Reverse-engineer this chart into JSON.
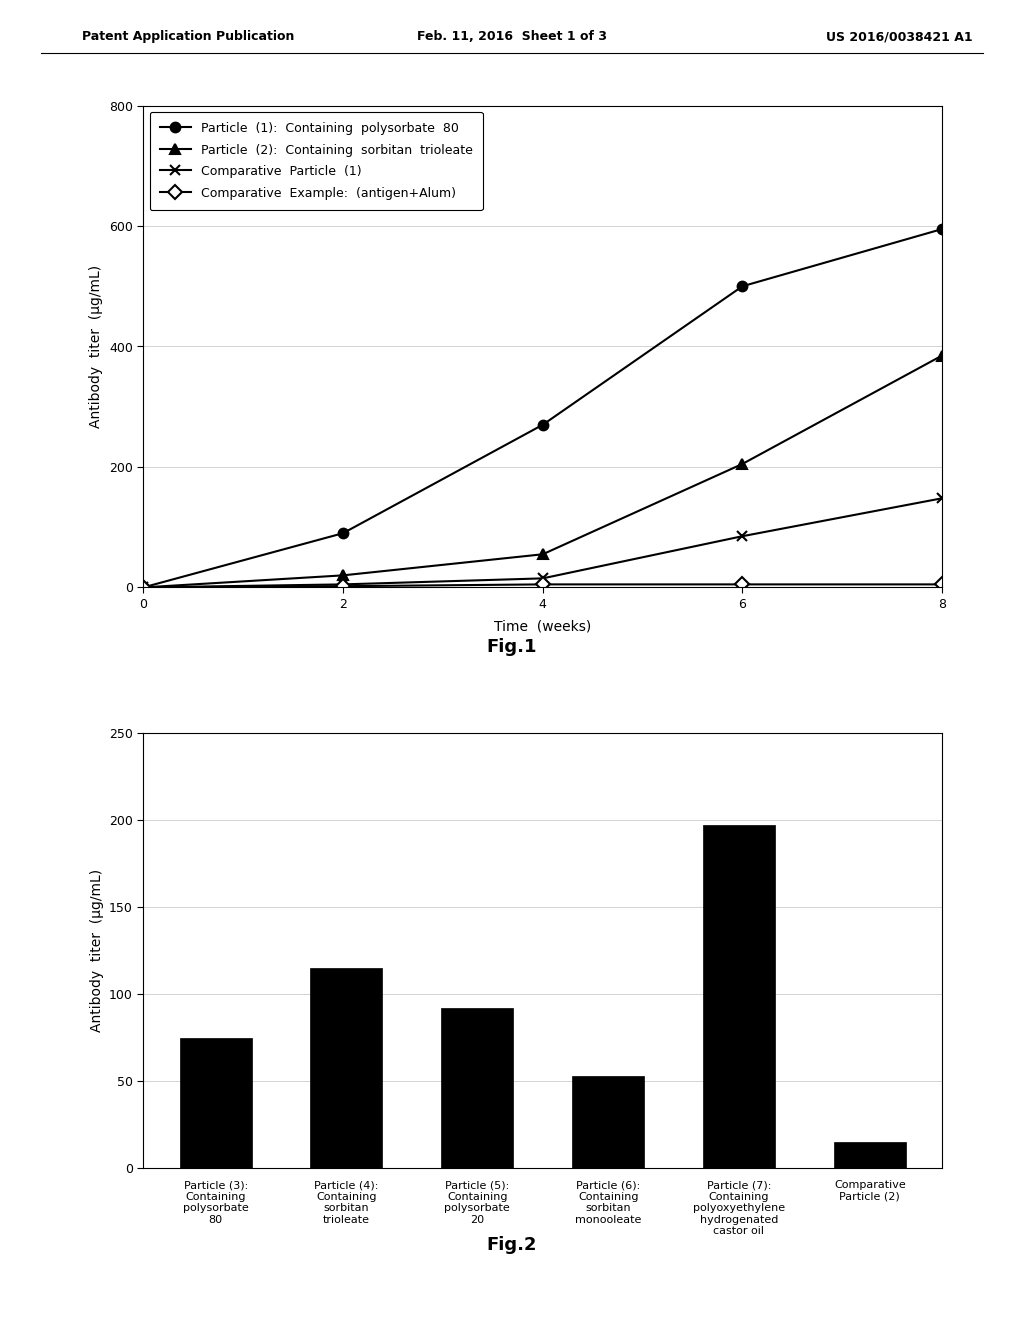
{
  "header_left": "Patent Application Publication",
  "header_mid": "Feb. 11, 2016  Sheet 1 of 3",
  "header_right": "US 2016/0038421 A1",
  "fig1": {
    "title": "Fig.1",
    "xlabel": "Time  (weeks)",
    "ylabel": "Antibody  titer  (μg/mL)",
    "xlim": [
      0,
      8
    ],
    "ylim": [
      0,
      800
    ],
    "yticks": [
      0,
      200,
      400,
      600,
      800
    ],
    "xticks": [
      0,
      2,
      4,
      6,
      8
    ],
    "series": [
      {
        "label": "Particle  (1):  Containing  polysorbate  80",
        "x": [
          0,
          2,
          4,
          6,
          8
        ],
        "y": [
          0,
          90,
          270,
          500,
          595
        ],
        "marker": "o",
        "marker_fill": "black",
        "linestyle": "-",
        "color": "black"
      },
      {
        "label": "Particle  (2):  Containing  sorbitan  trioleate",
        "x": [
          0,
          2,
          4,
          6,
          8
        ],
        "y": [
          0,
          20,
          55,
          205,
          385
        ],
        "marker": "^",
        "marker_fill": "black",
        "linestyle": "-",
        "color": "black"
      },
      {
        "label": "Comparative  Particle  (1)",
        "x": [
          0,
          2,
          4,
          6,
          8
        ],
        "y": [
          0,
          5,
          15,
          85,
          148
        ],
        "marker": "x",
        "marker_fill": "black",
        "linestyle": "-",
        "color": "black"
      },
      {
        "label": "Comparative  Example:  (antigen+Alum)",
        "x": [
          0,
          2,
          4,
          6,
          8
        ],
        "y": [
          0,
          2,
          5,
          5,
          5
        ],
        "marker": "D",
        "marker_fill": "white",
        "linestyle": "-",
        "color": "black"
      }
    ]
  },
  "fig2": {
    "title": "Fig.2",
    "ylabel": "Antibody  titer  (μg/mL)",
    "ylim": [
      0,
      250
    ],
    "yticks": [
      0,
      50,
      100,
      150,
      200,
      250
    ],
    "bar_color": "black",
    "categories": [
      "Particle (3):\nContaining\npolysorbate\n80",
      "Particle (4):\nContaining\nsorbitan\ntrioleate",
      "Particle (5):\nContaining\npolysorbate\n20",
      "Particle (6):\nContaining\nsorbitan\nmonooleate",
      "Particle (7):\nContaining\npolyoxyethylene\nhydrogenated\ncastor oil",
      "Comparative\nParticle (2)"
    ],
    "values": [
      75,
      115,
      92,
      53,
      197,
      15
    ]
  },
  "background_color": "#ffffff",
  "text_color": "#000000"
}
